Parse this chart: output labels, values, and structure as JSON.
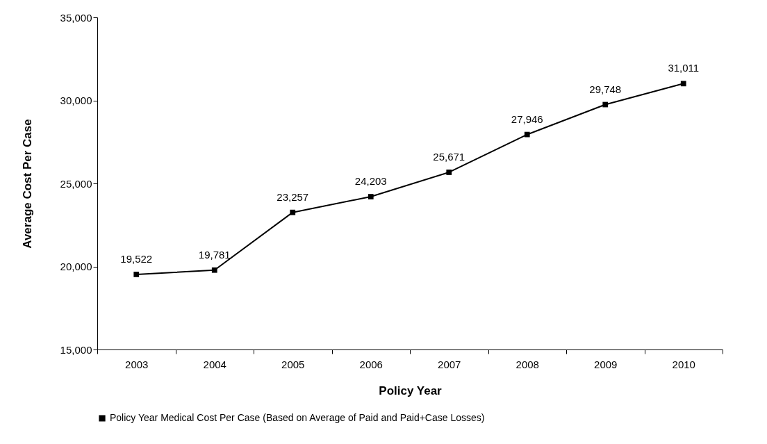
{
  "chart_data": {
    "type": "line",
    "xlabel": "Policy Year",
    "ylabel": "Average Cost Per Case",
    "categories": [
      "2003",
      "2004",
      "2005",
      "2006",
      "2007",
      "2008",
      "2009",
      "2010"
    ],
    "value_labels": [
      "19,522",
      "19,781",
      "23,257",
      "24,203",
      "25,671",
      "27,946",
      "29,748",
      "31,011"
    ],
    "series": [
      {
        "name": "Policy Year Medical Cost Per Case (Based on Average of Paid and Paid+Case Losses)",
        "color": "#000000",
        "values": [
          19522,
          19781,
          23257,
          24203,
          25671,
          27946,
          29748,
          31011
        ]
      }
    ],
    "ylim": [
      15000,
      35000
    ],
    "yticks": [
      {
        "value": 15000,
        "label": "15,000"
      },
      {
        "value": 20000,
        "label": "20,000"
      },
      {
        "value": 25000,
        "label": "25,000"
      },
      {
        "value": 30000,
        "label": "30,000"
      },
      {
        "value": 35000,
        "label": "35,000"
      }
    ],
    "grid": false,
    "legend": "bottom",
    "marker": "square",
    "line_style": "solid"
  }
}
